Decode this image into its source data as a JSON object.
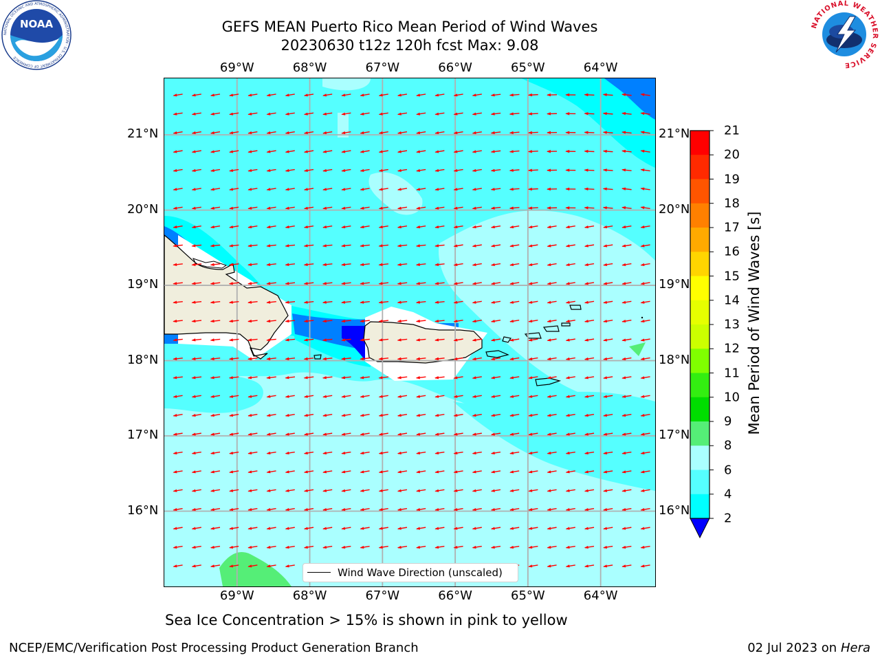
{
  "title": {
    "line1": "GEFS MEAN Puerto Rico Mean Period of Wind Waves",
    "line2": "20230630 t12z 120h fcst   Max: 9.08"
  },
  "map": {
    "lon_labels": [
      "69°W",
      "68°W",
      "67°W",
      "66°W",
      "65°W",
      "64°W"
    ],
    "lat_labels": [
      "21°N",
      "20°N",
      "19°N",
      "18°N",
      "17°N",
      "16°N"
    ],
    "lon_values": [
      -69,
      -68,
      -67,
      -66,
      -65,
      -64
    ],
    "lat_values": [
      21,
      20,
      19,
      18,
      17,
      16
    ],
    "extent": {
      "lon": [
        -70.0,
        -63.25
      ],
      "lat": [
        15.0,
        21.75
      ]
    },
    "legend_label": "Wind Wave Direction (unscaled)",
    "arrow_color": "#ff0000",
    "land_color": "#f0eedd",
    "grid": true,
    "legend_placement": "bottom-center"
  },
  "colorbar": {
    "label": "Mean Period of Wind Waves [s]",
    "ticks": [
      "21",
      "20",
      "19",
      "18",
      "17",
      "16",
      "15",
      "14",
      "13",
      "12",
      "11",
      "10",
      "9",
      "8",
      "6",
      "4",
      "2"
    ],
    "colors": [
      "#ff0000",
      "#ff2a00",
      "#ff5500",
      "#ff8000",
      "#ffaa00",
      "#ffd500",
      "#ffff00",
      "#e6ff00",
      "#ccff00",
      "#80ff00",
      "#33ee11",
      "#00dd00",
      "#55ee77",
      "#aaffff",
      "#55ffff",
      "#00ffff",
      "#0080ff"
    ],
    "under_color": "#0000ff"
  },
  "caption": "Sea Ice Concentration > 15% is shown in pink to yellow",
  "footer": {
    "left": "NCEP/EMC/Verification Post Processing Product Generation Branch",
    "right_prefix": "02 Jul 2023 on ",
    "right_host": "Hera"
  },
  "logos": {
    "left": "NOAA",
    "left_ring": "NATIONAL OCEANIC AND ATMOSPHERIC ADMINISTRATION · U.S. DEPARTMENT OF COMMERCE",
    "right_ring": "NATIONAL WEATHER SERVICE"
  }
}
